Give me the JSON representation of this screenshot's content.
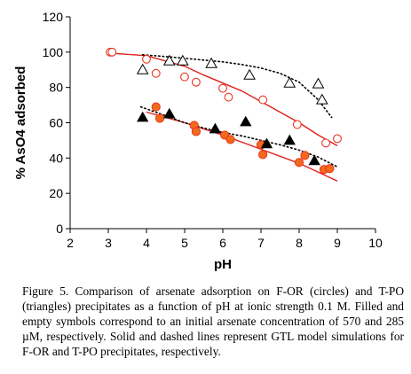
{
  "caption": "Figure 5. Comparison of arsenate adsorption on F-OR (circles) and T-PO (triangles) precipitates as a function of pH at ionic strength 0.1 M. Filled and empty symbols correspond to an initial arsenate concentration of 570 and 285 µM, respectively. Solid and dashed lines represent GTL model simulations for F-OR and T-PO precipitates, respectively.",
  "chart_data": {
    "type": "scatter",
    "xlabel": "pH",
    "ylabel": "% AsO4 adsorbed",
    "xlim": [
      2,
      10
    ],
    "ylim": [
      0,
      120
    ],
    "xticks": [
      2,
      3,
      4,
      5,
      6,
      7,
      8,
      9,
      10
    ],
    "yticks": [
      0,
      20,
      40,
      60,
      80,
      100,
      120
    ],
    "grid": false,
    "colors": {
      "circles": "#e8351e",
      "circle_fill": "#f26a1b",
      "triangles": "#000000",
      "model_for": "#e0201b",
      "model_tpo": "#000000"
    },
    "series": [
      {
        "key": "for_filled",
        "marker": "circle-filled",
        "points": [
          [
            4.25,
            69
          ],
          [
            4.35,
            62.5
          ],
          [
            5.25,
            58.5
          ],
          [
            5.3,
            55
          ],
          [
            6.05,
            53
          ],
          [
            6.2,
            50.5
          ],
          [
            7.0,
            47.5
          ],
          [
            7.05,
            42
          ],
          [
            8.0,
            37.5
          ],
          [
            8.15,
            41.5
          ],
          [
            8.65,
            33.5
          ],
          [
            8.8,
            34
          ]
        ]
      },
      {
        "key": "for_empty",
        "marker": "circle-open",
        "points": [
          [
            3.05,
            100
          ],
          [
            3.1,
            100
          ],
          [
            4.0,
            96
          ],
          [
            4.25,
            88
          ],
          [
            5.0,
            86
          ],
          [
            5.3,
            83
          ],
          [
            6.0,
            79.5
          ],
          [
            6.15,
            74.5
          ],
          [
            7.05,
            73
          ],
          [
            7.95,
            59
          ],
          [
            8.7,
            48.5
          ],
          [
            9.0,
            51
          ]
        ]
      },
      {
        "key": "tpo_filled",
        "marker": "triangle-filled",
        "points": [
          [
            3.9,
            63
          ],
          [
            4.6,
            65
          ],
          [
            5.8,
            56.5
          ],
          [
            6.6,
            60.5
          ],
          [
            7.15,
            48
          ],
          [
            7.75,
            50
          ],
          [
            8.4,
            38.5
          ]
        ]
      },
      {
        "key": "tpo_empty",
        "marker": "triangle-open",
        "points": [
          [
            3.9,
            90
          ],
          [
            4.6,
            95
          ],
          [
            4.95,
            95
          ],
          [
            5.7,
            93.5
          ],
          [
            6.7,
            87
          ],
          [
            7.75,
            82.5
          ],
          [
            8.5,
            82
          ],
          [
            8.6,
            73
          ]
        ]
      },
      {
        "key": "for_model_high",
        "line": "solid",
        "points": [
          [
            4.0,
            66
          ],
          [
            5.0,
            60
          ],
          [
            6.0,
            53
          ],
          [
            7.0,
            45
          ],
          [
            8.0,
            37
          ],
          [
            9.0,
            27
          ]
        ]
      },
      {
        "key": "for_model_low",
        "line": "solid",
        "points": [
          [
            3.0,
            99.5
          ],
          [
            4.0,
            98
          ],
          [
            4.5,
            95
          ],
          [
            5.0,
            92
          ],
          [
            5.5,
            87
          ],
          [
            6.0,
            82.5
          ],
          [
            6.5,
            78
          ],
          [
            7.0,
            72
          ],
          [
            7.5,
            66
          ],
          [
            8.0,
            60
          ],
          [
            8.5,
            53
          ],
          [
            9.0,
            47
          ]
        ]
      },
      {
        "key": "tpo_model_high",
        "line": "dotted",
        "points": [
          [
            3.85,
            69
          ],
          [
            4.5,
            64
          ],
          [
            5.0,
            60
          ],
          [
            5.5,
            57
          ],
          [
            6.0,
            54.5
          ],
          [
            6.5,
            52.5
          ],
          [
            7.0,
            50
          ],
          [
            7.5,
            47.5
          ],
          [
            8.0,
            44.5
          ],
          [
            8.5,
            40.5
          ],
          [
            9.0,
            35
          ]
        ]
      },
      {
        "key": "tpo_model_low",
        "line": "dotted",
        "points": [
          [
            3.9,
            98.5
          ],
          [
            4.5,
            97.5
          ],
          [
            5.0,
            96.5
          ],
          [
            5.5,
            95.5
          ],
          [
            6.0,
            94.5
          ],
          [
            6.5,
            93
          ],
          [
            7.0,
            91
          ],
          [
            7.5,
            88
          ],
          [
            8.0,
            83
          ],
          [
            8.5,
            73
          ],
          [
            8.85,
            63
          ]
        ]
      }
    ]
  }
}
